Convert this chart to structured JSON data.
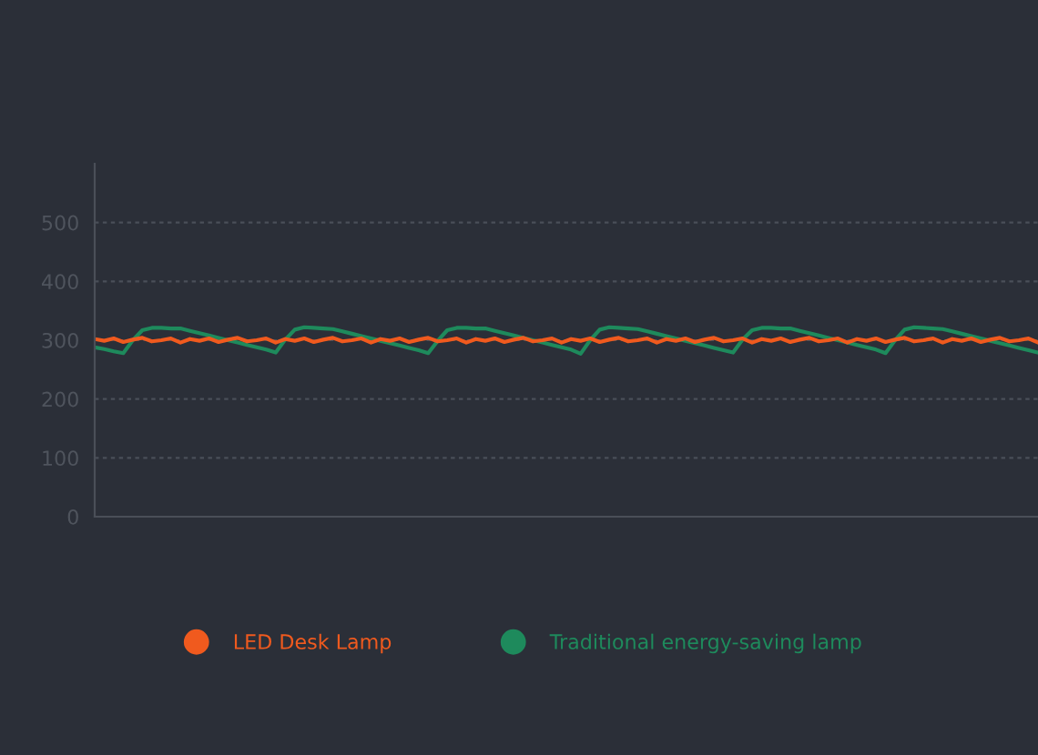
{
  "chart_data": {
    "type": "line",
    "categories": [
      null,
      null,
      null,
      null,
      null,
      null,
      null,
      null,
      null,
      null,
      null,
      null,
      null,
      null,
      null,
      null,
      null,
      null,
      null,
      null,
      null,
      null,
      null,
      null,
      null,
      null,
      null,
      null,
      null,
      null,
      null,
      null,
      null,
      null,
      null,
      null,
      null,
      null,
      null,
      null,
      null,
      null,
      null,
      null,
      null,
      null,
      null,
      null,
      null,
      null,
      null,
      null,
      null,
      null,
      null,
      null,
      null,
      null,
      null,
      null,
      null,
      null,
      null,
      null,
      null,
      null,
      null,
      null,
      null,
      null,
      null,
      null,
      null,
      null,
      null,
      null,
      null,
      null,
      null,
      null,
      null,
      null,
      null,
      null,
      null,
      null,
      null,
      null,
      null,
      null,
      null,
      null,
      null,
      null,
      null,
      null,
      null,
      null,
      null,
      null
    ],
    "series": [
      {
        "name": "Traditional energy-saving lamp",
        "color": "#1e8a5c",
        "values": [
          288,
          285,
          281,
          278,
          300,
          317,
          321,
          321,
          320,
          320,
          316,
          312,
          308,
          304,
          300,
          296,
          292,
          288,
          284,
          279,
          301,
          318,
          322,
          321,
          320,
          319,
          315,
          311,
          307,
          303,
          299,
          295,
          291,
          287,
          283,
          278,
          299,
          317,
          321,
          321,
          320,
          320,
          316,
          312,
          308,
          304,
          300,
          296,
          292,
          288,
          284,
          277,
          300,
          318,
          322,
          321,
          320,
          319,
          315,
          311,
          307,
          303,
          299,
          295,
          291,
          287,
          283,
          279,
          301,
          317,
          321,
          321,
          320,
          320,
          316,
          312,
          308,
          304,
          300,
          296,
          292,
          288,
          284,
          278,
          300,
          318,
          322,
          321,
          320,
          319,
          315,
          311,
          307,
          303,
          299,
          295,
          291,
          287,
          283,
          279
        ]
      },
      {
        "name": "LED Desk Lamp",
        "color": "#f05a1e",
        "values": [
          302,
          299,
          303,
          297,
          301,
          304,
          298,
          300,
          303,
          296,
          302,
          299,
          303,
          297,
          301,
          304,
          298,
          300,
          303,
          296,
          302,
          299,
          303,
          297,
          301,
          304,
          298,
          300,
          303,
          296,
          302,
          299,
          303,
          297,
          301,
          304,
          298,
          300,
          303,
          296,
          302,
          299,
          303,
          297,
          301,
          304,
          298,
          300,
          303,
          296,
          302,
          299,
          303,
          297,
          301,
          304,
          298,
          300,
          303,
          296,
          302,
          299,
          303,
          297,
          301,
          304,
          298,
          300,
          303,
          296,
          302,
          299,
          303,
          297,
          301,
          304,
          298,
          300,
          303,
          296,
          302,
          299,
          303,
          297,
          301,
          304,
          298,
          300,
          303,
          296,
          302,
          299,
          303,
          297,
          301,
          304,
          298,
          300,
          303,
          296
        ]
      }
    ],
    "ylim": [
      0,
      600
    ],
    "yticks": [
      0,
      100,
      200,
      300,
      400,
      500
    ],
    "grid": "y",
    "legend": "bottom",
    "marker": "none",
    "line_style": "solid"
  }
}
